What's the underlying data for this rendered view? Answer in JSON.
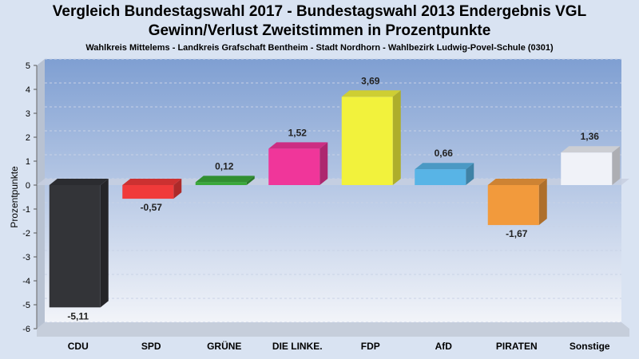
{
  "chart_data": {
    "type": "bar",
    "title": "Vergleich Bundestagswahl 2017 - Bundestagswahl 2013 Endergebnis VGL",
    "title2": "Gewinn/Verlust Zweitstimmen in Prozentpunkte",
    "subtitle": "Wahlkreis Mittelems - Landkreis Grafschaft Bentheim - Stadt Nordhorn - Wahlbezirk Ludwig-Povel-Schule (0301)",
    "ylabel": "Prozentpunkte",
    "ylim": [
      -6,
      5
    ],
    "yticks": [
      "5",
      "4",
      "3",
      "2",
      "1",
      "0",
      "-1",
      "-2",
      "-3",
      "-4",
      "-5",
      "-6"
    ],
    "categories": [
      "CDU",
      "SPD",
      "GRÜNE",
      "DIE LINKE.",
      "FDP",
      "AfD",
      "PIRATEN",
      "Sonstige"
    ],
    "values": [
      -5.11,
      -0.57,
      0.12,
      1.52,
      3.69,
      0.66,
      -1.67,
      1.36
    ],
    "value_labels": [
      "-5,11",
      "-0,57",
      "0,12",
      "1,52",
      "3,69",
      "0,66",
      "-1,67",
      "1,36"
    ],
    "colors": [
      "#333438",
      "#f03a3a",
      "#3aa83a",
      "#f0369a",
      "#f2f23c",
      "#58b4e6",
      "#f29a3c",
      "#f0f2f8"
    ],
    "grid": true
  }
}
